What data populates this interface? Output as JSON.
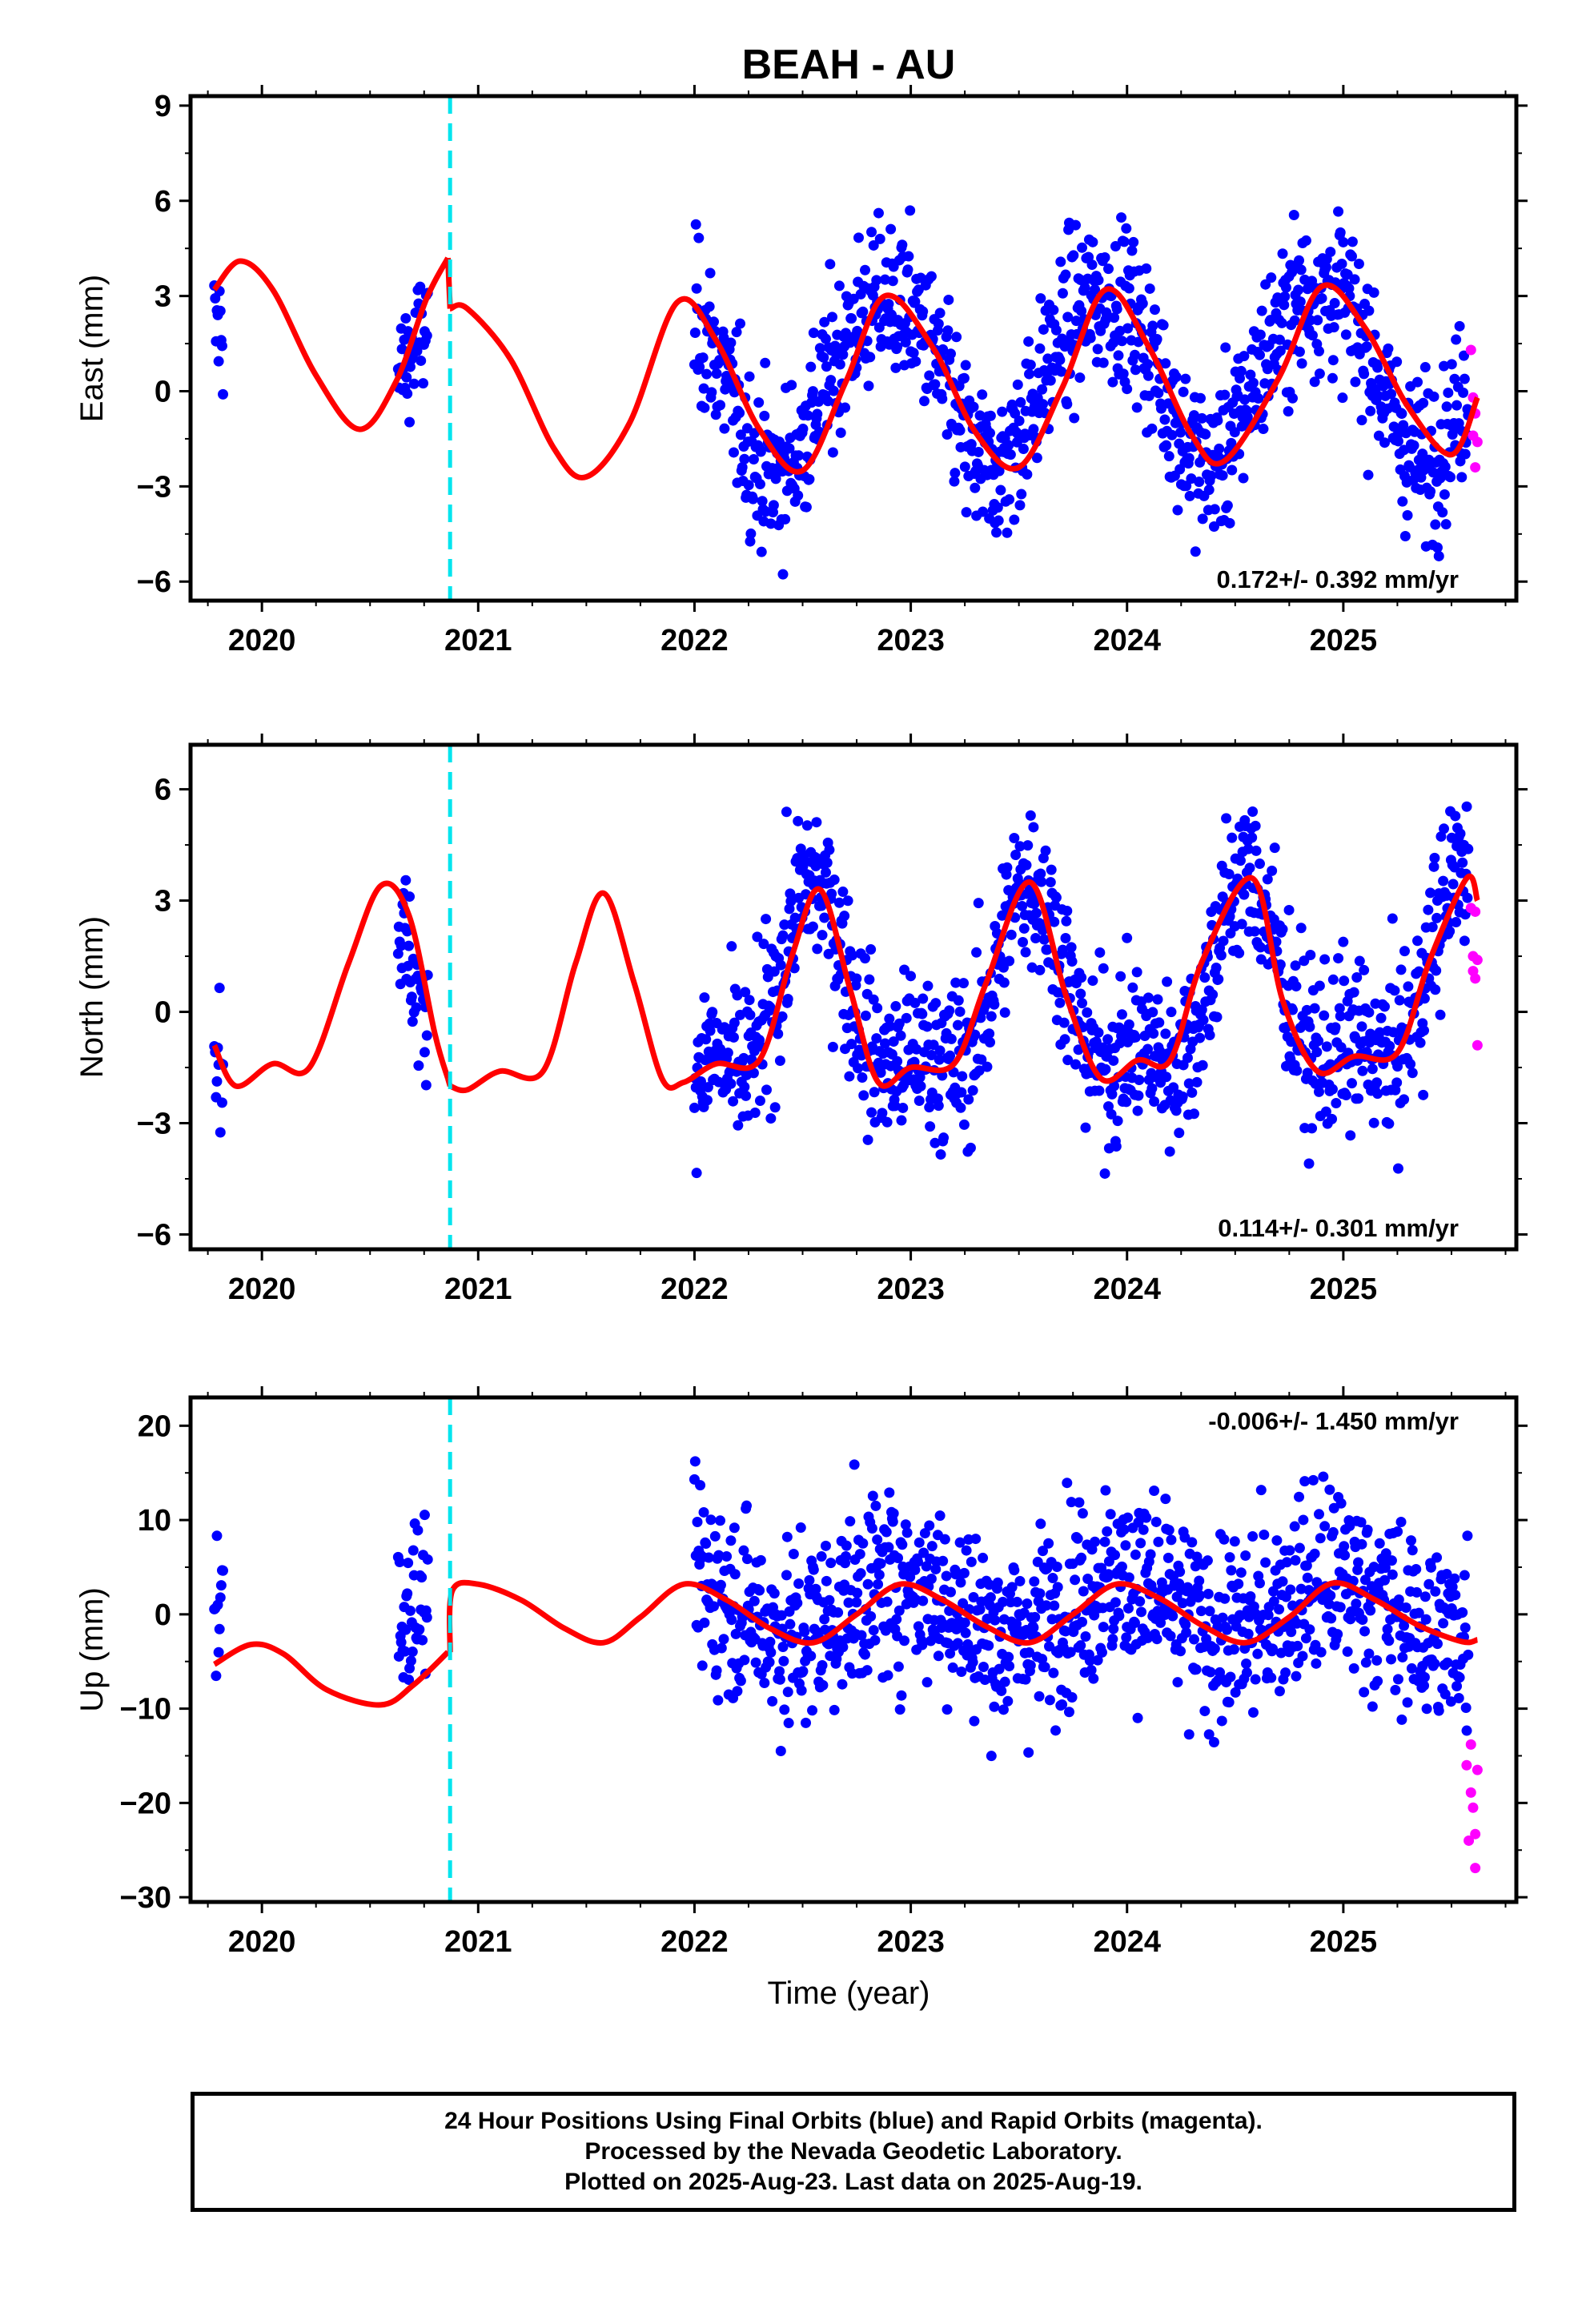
{
  "title": "BEAH - AU",
  "colors": {
    "final": "#0000ff",
    "rapid": "#ff00ff",
    "model": "#ff0000",
    "break": "#00e5ee",
    "axes": "#000000"
  },
  "xlabel": "Time (year)",
  "xticks": [
    "2020",
    "2021",
    "2022",
    "2023",
    "2024",
    "2025"
  ],
  "equipment_change_year": 2020.87,
  "chart_data": [
    {
      "type": "scatter",
      "name": "east",
      "ylabel": "East (mm)",
      "ylim": [
        -6.6,
        9.3
      ],
      "xlim": [
        2019.67,
        2025.8
      ],
      "yticks": [
        "−6",
        "−3",
        "0",
        "3",
        "6",
        "9"
      ],
      "rate_label": "0.172+/- 0.392 mm/yr",
      "model_segments": [
        {
          "x": [
            2019.78,
            2019.9,
            2020.05,
            2020.25,
            2020.45,
            2020.62,
            2020.76,
            2020.86
          ],
          "y": [
            3.2,
            4.1,
            3.2,
            0.5,
            -1.2,
            0.3,
            2.9,
            4.2
          ]
        },
        {
          "x": [
            2020.87,
            2020.95,
            2021.15,
            2021.35,
            2021.5,
            2021.7,
            2021.92,
            2022.1,
            2022.3,
            2022.5,
            2022.7,
            2022.88,
            2023.1,
            2023.3,
            2023.5,
            2023.7,
            2023.9,
            2024.1,
            2024.3,
            2024.45,
            2024.7,
            2024.9,
            2025.1,
            2025.3,
            2025.5,
            2025.62
          ],
          "y": [
            2.6,
            2.6,
            1.0,
            -1.8,
            -2.7,
            -1.0,
            2.8,
            1.6,
            -1.2,
            -2.5,
            0.3,
            3.0,
            1.4,
            -1.3,
            -2.4,
            0.1,
            3.2,
            1.4,
            -1.4,
            -2.2,
            0.4,
            3.3,
            2.0,
            -0.5,
            -2.0,
            -0.2
          ]
        }
      ],
      "rate_mm_yr": 0.172,
      "seasonal": {
        "mean": 0.4,
        "a1": 2.7,
        "p1": 2022.88,
        "a2": 0.3,
        "p2": 2022.6
      },
      "noise_sd": 1.25,
      "gap": [
        2019.82,
        2020.63,
        2020.77,
        2022.0
      ]
    },
    {
      "type": "scatter",
      "name": "north",
      "ylabel": "North (mm)",
      "ylim": [
        -6.4,
        7.2
      ],
      "xlim": [
        2019.67,
        2025.8
      ],
      "yticks": [
        "−6",
        "−3",
        "0",
        "3",
        "6"
      ],
      "rate_label": "0.114+/- 0.301 mm/yr",
      "model_segments": [
        {
          "x": [
            2019.78,
            2019.88,
            2020.05,
            2020.22,
            2020.4,
            2020.55,
            2020.68,
            2020.8,
            2020.86
          ],
          "y": [
            -0.9,
            -2.0,
            -1.4,
            -1.5,
            1.3,
            3.4,
            2.6,
            -0.6,
            -1.8
          ]
        },
        {
          "x": [
            2020.87,
            2020.95,
            2021.1,
            2021.3,
            2021.45,
            2021.58,
            2021.72,
            2021.85,
            2021.95,
            2022.1,
            2022.3,
            2022.45,
            2022.58,
            2022.72,
            2022.85,
            2023.0,
            2023.2,
            2023.35,
            2023.55,
            2023.72,
            2023.88,
            2024.05,
            2024.2,
            2024.35,
            2024.58,
            2024.72,
            2024.88,
            2025.05,
            2025.25,
            2025.4,
            2025.57,
            2025.62
          ],
          "y": [
            -2.0,
            -2.1,
            -1.6,
            -1.6,
            1.3,
            3.2,
            0.8,
            -1.8,
            -1.9,
            -1.4,
            -1.3,
            1.5,
            3.3,
            0.6,
            -1.9,
            -1.5,
            -1.4,
            0.8,
            3.5,
            0.4,
            -1.8,
            -1.3,
            -1.3,
            1.4,
            3.6,
            0.3,
            -1.6,
            -1.2,
            -1.1,
            1.4,
            3.6,
            3.0
          ]
        }
      ],
      "rate_mm_yr": 0.114,
      "seasonal": {
        "mean": 0.2,
        "a1": 2.3,
        "p1": 2022.55,
        "a2": 1.0,
        "p2": 2022.55
      },
      "noise_sd": 1.15,
      "gap": [
        2019.82,
        2020.63,
        2020.77,
        2022.0
      ]
    },
    {
      "type": "scatter",
      "name": "up",
      "ylabel": "Up (mm)",
      "ylim": [
        -30.5,
        23
      ],
      "xlim": [
        2019.67,
        2025.8
      ],
      "yticks": [
        "−30",
        "−20",
        "−10",
        "0",
        "10",
        "20"
      ],
      "rate_label": "-0.006+/- 1.450 mm/yr",
      "model_segments": [
        {
          "x": [
            2019.78,
            2019.95,
            2020.1,
            2020.3,
            2020.55,
            2020.7,
            2020.86
          ],
          "y": [
            -5.3,
            -3.2,
            -4.2,
            -8.0,
            -9.6,
            -7.5,
            -4.0
          ]
        },
        {
          "x": [
            2020.87,
            2020.88,
            2021.0,
            2021.2,
            2021.4,
            2021.58,
            2021.75,
            2021.95,
            2022.15,
            2022.35,
            2022.55,
            2022.75,
            2022.95,
            2023.15,
            2023.35,
            2023.55,
            2023.75,
            2023.95,
            2024.15,
            2024.35,
            2024.55,
            2024.75,
            2024.95,
            2025.15,
            2025.35,
            2025.55,
            2025.62
          ],
          "y": [
            -4.0,
            2.5,
            3.2,
            1.5,
            -1.5,
            -3.0,
            -0.3,
            3.2,
            1.5,
            -1.5,
            -3.0,
            0.0,
            3.2,
            1.5,
            -1.3,
            -3.0,
            0.0,
            3.2,
            1.7,
            -1.2,
            -3.0,
            -0.3,
            3.3,
            1.5,
            -1.2,
            -2.9,
            -2.7
          ]
        }
      ],
      "rate_mm_yr": -0.006,
      "seasonal": {
        "mean": 0.8,
        "a1": 3.0,
        "p1": 2022.95,
        "a2": 0.2,
        "p2": 2022.7
      },
      "noise_sd": 5.0,
      "gap": [
        2019.82,
        2020.63,
        2020.77,
        2022.0
      ]
    }
  ],
  "rapid_points": {
    "east": [
      [
        2025.59,
        1.3
      ],
      [
        2025.6,
        -0.2
      ],
      [
        2025.6,
        -1.4
      ],
      [
        2025.61,
        -0.7
      ],
      [
        2025.61,
        -2.4
      ],
      [
        2025.62,
        -1.6
      ]
    ],
    "north": [
      [
        2025.59,
        2.8
      ],
      [
        2025.6,
        1.5
      ],
      [
        2025.6,
        1.1
      ],
      [
        2025.61,
        2.7
      ],
      [
        2025.61,
        0.9
      ],
      [
        2025.62,
        1.4
      ],
      [
        2025.62,
        -0.9
      ]
    ],
    "up": [
      [
        2025.57,
        -16.0
      ],
      [
        2025.58,
        -24.0
      ],
      [
        2025.59,
        -13.8
      ],
      [
        2025.59,
        -18.9
      ],
      [
        2025.6,
        -20.5
      ],
      [
        2025.61,
        -23.3
      ],
      [
        2025.61,
        -26.9
      ],
      [
        2025.62,
        -16.5
      ]
    ]
  },
  "footer": {
    "line1": "24 Hour Positions Using Final Orbits (blue) and Rapid Orbits (magenta).",
    "line2": "Processed by the Nevada Geodetic Laboratory.",
    "line3": "Plotted on 2025-Aug-23. Last data on 2025-Aug-19."
  }
}
